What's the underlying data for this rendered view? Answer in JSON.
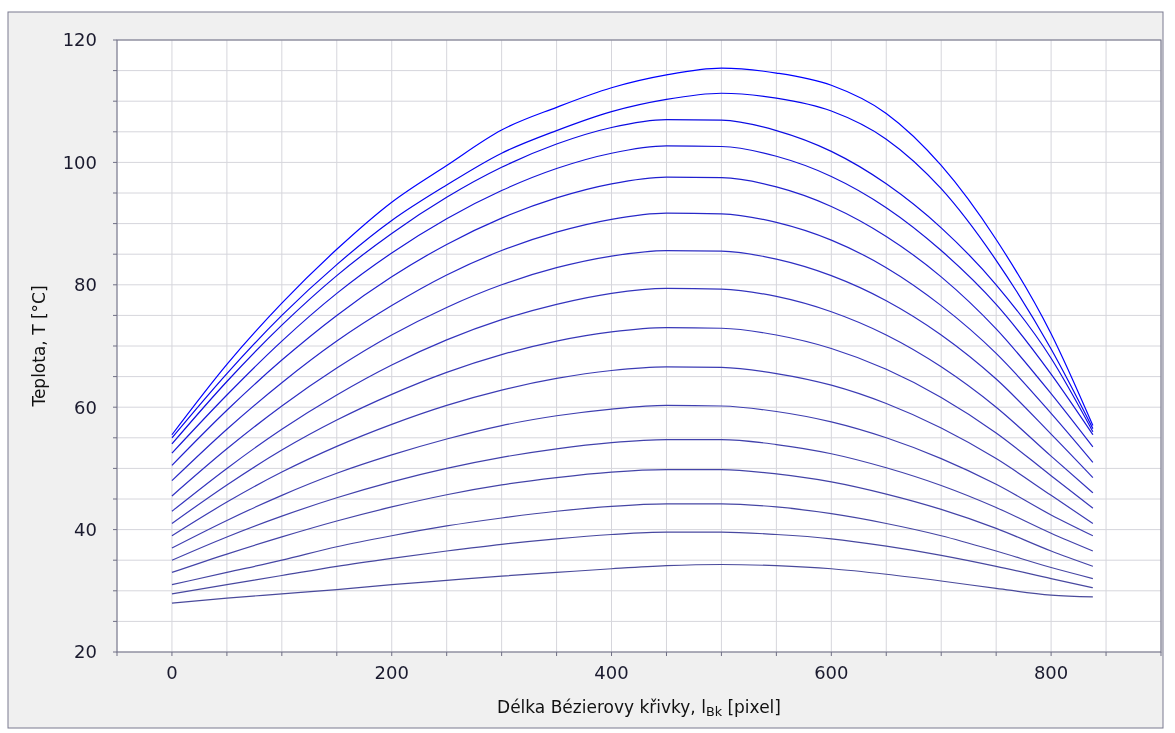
{
  "chart_data": {
    "type": "line",
    "xlabel": "Délka Bézierovy křivky, l$_{Bk}$ [pixel]",
    "ylabel": "Teplota, T [°C]",
    "x": [
      0,
      50,
      100,
      150,
      200,
      250,
      300,
      350,
      400,
      450,
      500,
      550,
      600,
      650,
      700,
      750,
      800,
      838
    ],
    "series": [
      {
        "color": "#4a4a9c",
        "values": [
          28,
          28.8,
          29.5,
          30.2,
          31,
          31.7,
          32.4,
          33,
          33.6,
          34.1,
          34.3,
          34.1,
          33.6,
          32.7,
          31.6,
          30.4,
          29.3,
          29
        ]
      },
      {
        "color": "#4848a0",
        "values": [
          29.5,
          31,
          32.5,
          34,
          35.3,
          36.5,
          37.6,
          38.5,
          39.2,
          39.6,
          39.6,
          39.2,
          38.5,
          37.3,
          35.8,
          34,
          32,
          30.5
        ]
      },
      {
        "color": "#4646a4",
        "values": [
          31,
          33,
          35,
          37.2,
          39,
          40.6,
          41.9,
          43,
          43.8,
          44.2,
          44.2,
          43.7,
          42.6,
          41,
          39,
          36.5,
          33.8,
          32
        ]
      },
      {
        "color": "#4444a8",
        "values": [
          33,
          36,
          38.8,
          41.4,
          43.7,
          45.7,
          47.3,
          48.5,
          49.4,
          49.8,
          49.8,
          49.1,
          47.8,
          45.8,
          43.3,
          40.2,
          36.5,
          34
        ]
      },
      {
        "color": "#4242ac",
        "values": [
          35,
          38.8,
          42.2,
          45.2,
          47.8,
          50,
          51.8,
          53.2,
          54.2,
          54.7,
          54.7,
          53.9,
          52.4,
          50.1,
          47.2,
          43.6,
          39.4,
          36.5
        ]
      },
      {
        "color": "#3f3fb0",
        "values": [
          37,
          41.5,
          45.6,
          49.2,
          52.2,
          54.8,
          57,
          58.6,
          59.7,
          60.3,
          60.2,
          59.3,
          57.6,
          55,
          51.6,
          47.4,
          42.4,
          39
        ]
      },
      {
        "color": "#3c3cb4",
        "values": [
          39,
          44.5,
          49.4,
          53.6,
          57.2,
          60.3,
          62.8,
          64.7,
          66,
          66.6,
          66.5,
          65.5,
          63.6,
          60.6,
          56.6,
          51.6,
          45.6,
          41
        ]
      },
      {
        "color": "#3838b8",
        "values": [
          41,
          47.3,
          53,
          57.9,
          62.1,
          65.7,
          68.6,
          70.8,
          72.3,
          73,
          72.9,
          71.8,
          69.6,
          66.2,
          61.6,
          55.8,
          48.8,
          43.5
        ]
      },
      {
        "color": "#3434bd",
        "values": [
          43,
          50,
          56.4,
          62,
          66.9,
          71,
          74.3,
          76.8,
          78.6,
          79.4,
          79.3,
          78.1,
          75.6,
          71.8,
          66.6,
          60,
          52,
          46
        ]
      },
      {
        "color": "#2f2fc2",
        "values": [
          45.5,
          53.2,
          60.2,
          66.4,
          71.8,
          76.3,
          80,
          82.8,
          84.7,
          85.6,
          85.5,
          84.2,
          81.5,
          77.4,
          71.8,
          64.6,
          55.6,
          48.5
        ]
      },
      {
        "color": "#2828c8",
        "values": [
          48,
          56.4,
          64,
          70.8,
          76.6,
          81.6,
          85.6,
          88.6,
          90.7,
          91.7,
          91.6,
          90.2,
          87.3,
          82.8,
          76.6,
          68.8,
          59,
          51
        ]
      },
      {
        "color": "#2020cf",
        "values": [
          50.5,
          59.5,
          67.7,
          75,
          81.3,
          86.6,
          90.9,
          94.2,
          96.5,
          97.6,
          97.5,
          96,
          92.8,
          87.9,
          81.3,
          72.8,
          62.2,
          53.5
        ]
      },
      {
        "color": "#1616d8",
        "values": [
          52.5,
          62,
          70.8,
          78.6,
          85.2,
          90.8,
          95.4,
          99,
          101.5,
          102.7,
          102.6,
          101,
          97.7,
          92.6,
          85.6,
          76.8,
          65.4,
          55.5
        ]
      },
      {
        "color": "#0c0ce2",
        "values": [
          54,
          64.2,
          73.4,
          81.5,
          88.4,
          94.3,
          99.2,
          103,
          105.7,
          107,
          106.9,
          105.2,
          101.8,
          96.5,
          89.3,
          80,
          68,
          56
        ]
      },
      {
        "color": "#0505ee",
        "values": [
          55,
          65.5,
          75,
          83.3,
          90.5,
          96.3,
          101.5,
          105.2,
          108.3,
          110.3,
          111.3,
          110.5,
          108.4,
          103.8,
          95.7,
          84,
          69.5,
          56.5
        ]
      },
      {
        "color": "#0000ff",
        "values": [
          55.5,
          67,
          77,
          85.8,
          93.5,
          99.5,
          105.3,
          109,
          112.2,
          114.3,
          115.4,
          114.6,
          112.6,
          108,
          99.5,
          87.4,
          72,
          57
        ]
      }
    ],
    "xlim": [
      -50,
      900
    ],
    "xticks": [
      {
        "value": -50,
        "label": null
      },
      0,
      {
        "value": 50,
        "label": null
      },
      {
        "value": 100,
        "label": null
      },
      {
        "value": 150,
        "label": null
      },
      200,
      {
        "value": 250,
        "label": null
      },
      {
        "value": 300,
        "label": null
      },
      {
        "value": 350,
        "label": null
      },
      400,
      {
        "value": 450,
        "label": null
      },
      {
        "value": 500,
        "label": null
      },
      {
        "value": 550,
        "label": null
      },
      600,
      {
        "value": 650,
        "label": null
      },
      {
        "value": 700,
        "label": null
      },
      {
        "value": 750,
        "label": null
      },
      800,
      {
        "value": 850,
        "label": null
      },
      {
        "value": 900,
        "label": null
      }
    ],
    "ylim": [
      20,
      120
    ],
    "yticks": [
      20,
      {
        "value": 25,
        "label": null
      },
      {
        "value": 30,
        "label": null
      },
      {
        "value": 35,
        "label": null
      },
      40,
      {
        "value": 45,
        "label": null
      },
      {
        "value": 50,
        "label": null
      },
      {
        "value": 55,
        "label": null
      },
      60,
      {
        "value": 65,
        "label": null
      },
      {
        "value": 70,
        "label": null
      },
      {
        "value": 75,
        "label": null
      },
      80,
      {
        "value": 85,
        "label": null
      },
      {
        "value": 90,
        "label": null
      },
      {
        "value": 95,
        "label": null
      },
      100,
      {
        "value": 105,
        "label": null
      },
      {
        "value": 110,
        "label": null
      },
      {
        "value": 115,
        "label": null
      },
      120
    ],
    "grid": true,
    "marker": "none",
    "line_style": "solid"
  }
}
